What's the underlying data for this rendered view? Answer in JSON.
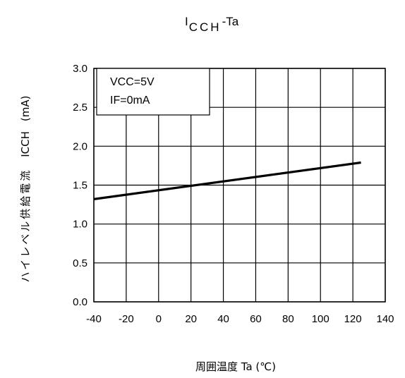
{
  "chart_data": {
    "type": "line",
    "title_main": "I",
    "title_sub": "CCH",
    "title_rest": "-Ta",
    "xlabel": "周囲温度  Ta (℃)",
    "ylabel_jp": "ハイレベル供給電流",
    "ylabel_sym": "ICCH",
    "ylabel_unit": "(mA)",
    "xlim": [
      -40,
      140
    ],
    "ylim": [
      0.0,
      3.0
    ],
    "x_ticks": [
      "-40",
      "-20",
      "0",
      "20",
      "40",
      "60",
      "80",
      "100",
      "120",
      "140"
    ],
    "y_ticks": [
      "0.0",
      "0.5",
      "1.0",
      "1.5",
      "2.0",
      "2.5",
      "3.0"
    ],
    "grid": true,
    "annotation": [
      "VCC=5V",
      "IF=0mA"
    ],
    "series": [
      {
        "x": [
          -40,
          125
        ],
        "y": [
          1.32,
          1.79
        ]
      }
    ]
  }
}
